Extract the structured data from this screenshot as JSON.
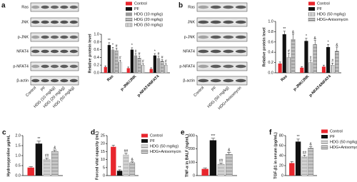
{
  "blots": [
    {
      "panel": "a",
      "rows": [
        "Ras",
        "JNK",
        "p-JNK",
        "NFAT4",
        "p-NFAT4",
        "β-actin"
      ],
      "lanes": [
        "Control",
        "PF",
        "HDG (10 mg/kg)",
        "HDG (20 mg/kg)",
        "HDG (50 mg/kg)"
      ]
    },
    {
      "panel": "b",
      "rows": [
        "Ras",
        "JNK",
        "p-JNK",
        "NFAT4",
        "p-NFAT4",
        "β-actin"
      ],
      "lanes": [
        "Control",
        "PF",
        "HDG (50 mg/kg)",
        "HDG+Anisomycin"
      ]
    }
  ],
  "chart_data": [
    {
      "type": "bar",
      "ylabel": "Relative protein level",
      "legend": "top",
      "categories": [
        "Ras",
        "p-JNK/JNK",
        "p-NFAT4/NFAT4"
      ],
      "ylim": [
        0,
        1
      ],
      "yticks": [
        {
          "value": 0,
          "label": "0.0"
        },
        0.2,
        0.4,
        0.6,
        0.8,
        {
          "value": 1,
          "label": "1.0"
        }
      ],
      "series": [
        {
          "name": "Control",
          "color": "#e8262d",
          "values": [
            0.15,
            0.12,
            0.1
          ],
          "errors": [
            0.03,
            0.03,
            0.03
          ],
          "annotations": [
            null,
            null,
            null
          ]
        },
        {
          "name": "PF",
          "color": "#111111",
          "values": [
            0.72,
            0.6,
            0.45
          ],
          "errors": [
            0.06,
            0.05,
            0.05
          ],
          "annotations": [
            "**",
            "*",
            "*"
          ]
        },
        {
          "name": "HDG (10 mg/kg)",
          "color": "#999999",
          "values": [
            0.6,
            0.45,
            0.38
          ],
          "errors": [
            0.06,
            0.05,
            0.05
          ],
          "annotations": [
            "*",
            "#",
            "#"
          ]
        },
        {
          "name": "HDG (20 mg/kg)",
          "color": "#555555",
          "hatch": "horizontal",
          "values": [
            0.58,
            0.38,
            0.3
          ],
          "errors": [
            0.06,
            0.05,
            0.04
          ],
          "annotations": [
            "#",
            "#",
            "#"
          ]
        },
        {
          "name": "HDG (50 mg/kg)",
          "color": "#888888",
          "hatch": "vertical",
          "values": [
            0.28,
            0.2,
            0.2
          ],
          "errors": [
            0.05,
            0.04,
            0.04
          ],
          "annotations": [
            "#",
            "#",
            "#"
          ]
        }
      ]
    },
    {
      "type": "bar",
      "ylabel": "Relative protein level",
      "legend": "top",
      "categories": [
        "Ras",
        "p-JNK/JNK",
        "p-NFAT4/NFAT4"
      ],
      "ylim": [
        0,
        1
      ],
      "yticks": [
        {
          "value": 0,
          "label": "0.0"
        },
        0.2,
        0.4,
        0.6,
        0.8,
        {
          "value": 1,
          "label": "1.0"
        }
      ],
      "series": [
        {
          "name": "Control",
          "color": "#e8262d",
          "values": [
            0.18,
            0.1,
            0.12
          ],
          "errors": [
            0.03,
            0.02,
            0.03
          ],
          "annotations": [
            null,
            null,
            null
          ]
        },
        {
          "name": "PF",
          "color": "#111111",
          "values": [
            0.75,
            0.62,
            0.5
          ],
          "errors": [
            0.06,
            0.05,
            0.05
          ],
          "annotations": [
            "**",
            "*",
            "*"
          ]
        },
        {
          "name": "HDG (50 mg/kg)",
          "color": "#888888",
          "hatch": "vertical",
          "values": [
            0.3,
            0.2,
            0.15
          ],
          "errors": [
            0.08,
            0.05,
            0.04
          ],
          "annotations": [
            "#",
            "#",
            "#"
          ]
        },
        {
          "name": "HDG+Anisomycin",
          "color": "#555555",
          "hatch": "horizontal",
          "values": [
            0.65,
            0.55,
            0.42
          ],
          "errors": [
            0.1,
            0.08,
            0.08
          ],
          "annotations": [
            "&",
            "&",
            "&"
          ]
        }
      ]
    },
    {
      "type": "bar",
      "panel": "c",
      "ylabel": "Hydroxyproline μg/mL",
      "categories": [
        null
      ],
      "ylim": [
        0,
        2
      ],
      "yticks": [
        {
          "value": 0,
          "label": "0.0"
        },
        0.5,
        {
          "value": 1,
          "label": "1.0"
        },
        1.5,
        {
          "value": 2,
          "label": "2.0"
        }
      ],
      "series": [
        {
          "color": "#e8262d",
          "values": [
            0.4
          ],
          "errors": [
            0.05
          ],
          "annotations": [
            null
          ]
        },
        {
          "color": "#111111",
          "values": [
            1.6
          ],
          "errors": [
            0.12
          ],
          "annotations": [
            "**"
          ]
        },
        {
          "color": "#888888",
          "hatch": "horizontal",
          "values": [
            0.8
          ],
          "errors": [
            0.08
          ],
          "annotations": [
            "##"
          ]
        },
        {
          "color": "#666666",
          "hatch": "horizontal",
          "values": [
            1.2
          ],
          "errors": [
            0.08
          ],
          "annotations": [
            "&"
          ]
        }
      ]
    },
    {
      "type": "bar",
      "panel": "d",
      "ylabel": "Forced vital capacity (mL)",
      "legend": "right",
      "categories": [
        null
      ],
      "ylim": [
        0,
        25
      ],
      "yticks": [
        0,
        5,
        10,
        15,
        20,
        25
      ],
      "series": [
        {
          "name": "Control",
          "color": "#e8262d",
          "values": [
            18
          ],
          "errors": [
            1
          ],
          "annotations": [
            null
          ]
        },
        {
          "name": "PF",
          "color": "#111111",
          "values": [
            3
          ],
          "errors": [
            0.6
          ],
          "annotations": [
            "**"
          ]
        },
        {
          "name": "HDG (50 mg/kg)",
          "color": "#888888",
          "hatch": "horizontal",
          "values": [
            13
          ],
          "errors": [
            1
          ],
          "annotations": [
            "##"
          ]
        },
        {
          "name": "HDG+Anisomycin",
          "color": "#666666",
          "hatch": "horizontal",
          "values": [
            8
          ],
          "errors": [
            0.6
          ],
          "annotations": [
            "&"
          ]
        }
      ]
    },
    {
      "type": "bar",
      "panel": "e",
      "ylabel": "TNF-α in BALF (ng/mL)",
      "categories": [
        null
      ],
      "ylim": [
        0,
        300
      ],
      "yticks": [
        0,
        100,
        200,
        300
      ],
      "series": [
        {
          "color": "#e8262d",
          "values": [
            50
          ],
          "errors": [
            8
          ],
          "annotations": [
            null
          ]
        },
        {
          "color": "#111111",
          "values": [
            265
          ],
          "errors": [
            15
          ],
          "annotations": [
            "***"
          ]
        },
        {
          "color": "#888888",
          "hatch": "horizontal",
          "values": [
            85
          ],
          "errors": [
            10
          ],
          "annotations": [
            "##"
          ]
        },
        {
          "color": "#666666",
          "hatch": "horizontal",
          "values": [
            160
          ],
          "errors": [
            15
          ],
          "annotations": [
            "&"
          ]
        }
      ]
    },
    {
      "type": "bar",
      "panel": "f",
      "ylabel": "TGF-β1 in serum (pg/mL)",
      "legend": "right",
      "categories": [
        null
      ],
      "ylim": [
        0,
        80
      ],
      "yticks": [
        0,
        20,
        40,
        60,
        80
      ],
      "series": [
        {
          "name": "Control",
          "color": "#e8262d",
          "values": [
            25
          ],
          "errors": [
            3
          ],
          "annotations": [
            null
          ]
        },
        {
          "name": "PF",
          "color": "#111111",
          "values": [
            68
          ],
          "errors": [
            5
          ],
          "annotations": [
            "**"
          ]
        },
        {
          "name": "HDG (50 mg/kg)",
          "color": "#888888",
          "hatch": "horizontal",
          "values": [
            38
          ],
          "errors": [
            3
          ],
          "annotations": [
            "##"
          ]
        },
        {
          "name": "HDG+Anisomycin",
          "color": "#666666",
          "hatch": "horizontal",
          "values": [
            55
          ],
          "errors": [
            3
          ],
          "annotations": [
            "&"
          ]
        }
      ]
    }
  ]
}
